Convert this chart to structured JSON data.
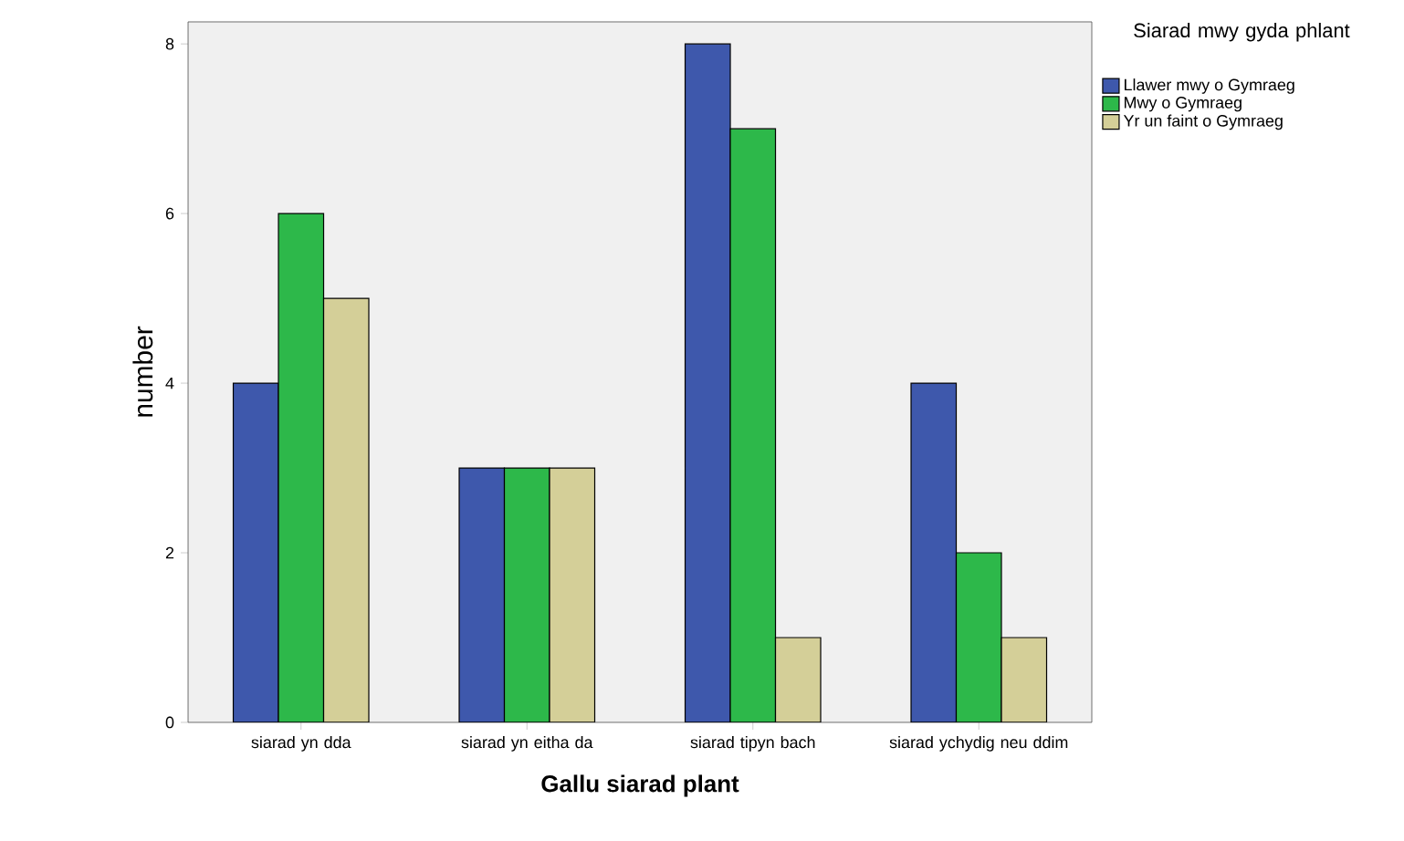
{
  "chart_data": {
    "type": "bar",
    "xlabel": "Gallu siarad plant",
    "ylabel": "number",
    "legend_title": "Siarad mwy gyda phlant",
    "categories": [
      "siarad yn dda",
      "siarad yn eitha da",
      "siarad tipyn bach",
      "siarad ychydig neu ddim"
    ],
    "series": [
      {
        "name": "Llawer mwy o Gymraeg",
        "color": "#3e58ac",
        "values": [
          4,
          3,
          8,
          4
        ]
      },
      {
        "name": "Mwy o Gymraeg",
        "color": "#2db84a",
        "values": [
          6,
          3,
          7,
          2
        ]
      },
      {
        "name": "Yr un faint o Gymraeg",
        "color": "#d4cf98",
        "values": [
          5,
          3,
          1,
          1
        ]
      }
    ],
    "ylim": [
      0,
      8.26
    ],
    "yticks": [
      0,
      2,
      4,
      6,
      8
    ],
    "grid": false,
    "legend": "top right"
  }
}
